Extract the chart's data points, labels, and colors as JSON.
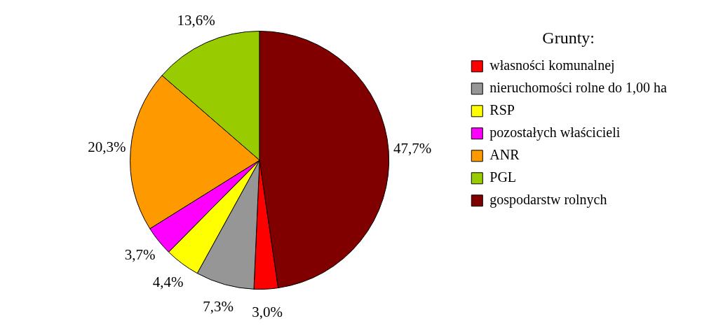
{
  "chart_data": {
    "type": "pie",
    "legend_title": "Grunty:",
    "legend": "right",
    "categories": [
      "własności komunalnej",
      "nieruchomości rolne do 1,00 ha",
      "RSP",
      "pozostałych właścicieli",
      "ANR",
      "PGL",
      "gospodarstw rolnych"
    ],
    "values": [
      3.0,
      7.3,
      4.4,
      3.7,
      20.3,
      13.6,
      47.7
    ],
    "colors": [
      "#ff0000",
      "#969696",
      "#ffff00",
      "#ff00ff",
      "#ff9900",
      "#99cc00",
      "#800000"
    ],
    "value_labels": [
      "3,0%",
      "7,3%",
      "4,4%",
      "3,7%",
      "20,3%",
      "13,6%",
      "47,7%"
    ]
  }
}
